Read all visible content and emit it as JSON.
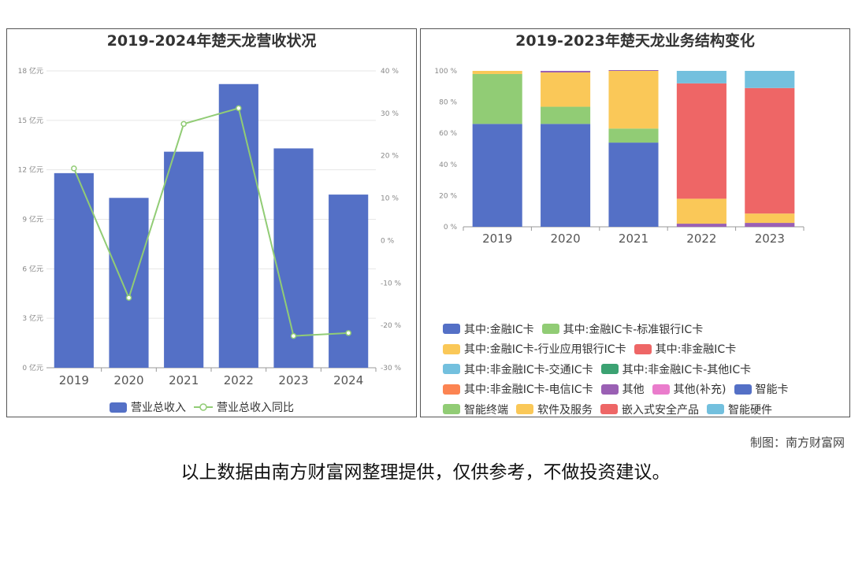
{
  "chart_data": [
    {
      "type": "bar",
      "title": "2019-2024年楚天龙营收状况",
      "categories": [
        "2019",
        "2020",
        "2021",
        "2022",
        "2023",
        "2024"
      ],
      "series": [
        {
          "name": "营业总收入",
          "type": "bar",
          "axis": "left",
          "values": [
            11.8,
            10.3,
            13.1,
            17.2,
            13.3,
            10.5
          ],
          "color": "#5470c6"
        },
        {
          "name": "营业总收入同比",
          "type": "line",
          "axis": "right",
          "values": [
            17,
            -13.5,
            27.5,
            31.2,
            -22.5,
            -21.8
          ],
          "color": "#91cc75"
        }
      ],
      "yaxis_left": {
        "min": 0,
        "max": 18,
        "step": 3,
        "unit": "亿元",
        "tick_labels": [
          "0 亿元",
          "3 亿元",
          "6 亿元",
          "9 亿元",
          "12 亿元",
          "15 亿元",
          "18 亿元"
        ]
      },
      "yaxis_right": {
        "min": -30,
        "max": 40,
        "step": 10,
        "unit": "%",
        "tick_labels": [
          "-30 %",
          "-20 %",
          "-10 %",
          "0 %",
          "10 %",
          "20 %",
          "30 %",
          "40 %"
        ]
      },
      "legend": "bottom-center",
      "grid": true
    },
    {
      "type": "bar",
      "stacked": true,
      "title": "2019-2023年楚天龙业务结构变化",
      "categories": [
        "2019",
        "2020",
        "2021",
        "2022",
        "2023"
      ],
      "series": [
        {
          "name": "其中:金融IC卡",
          "color": "#5470c6",
          "values": [
            66,
            66,
            54,
            0,
            0
          ]
        },
        {
          "name": "其中:金融IC卡-标准银行IC卡",
          "color": "#91cc75",
          "values": [
            32,
            11,
            9,
            0,
            0
          ]
        },
        {
          "name": "其中:金融IC卡-行业应用银行IC卡",
          "color": "#fac858",
          "values": [
            2,
            22,
            37,
            0,
            0
          ]
        },
        {
          "name": "其中:非金融IC卡",
          "color": "#ee6666",
          "values": [
            0,
            0,
            0,
            0,
            0
          ]
        },
        {
          "name": "其中:非金融IC卡-交通IC卡",
          "color": "#73c0de",
          "values": [
            0,
            0,
            0,
            0,
            0
          ]
        },
        {
          "name": "其中:非金融IC卡-其他IC卡",
          "color": "#3ba272",
          "values": [
            0,
            0,
            0,
            0,
            0
          ]
        },
        {
          "name": "其中:非金融IC卡-电信IC卡",
          "color": "#fc8452",
          "values": [
            0,
            0,
            0,
            0,
            0
          ]
        },
        {
          "name": "其他",
          "color": "#9a60b4",
          "values": [
            0,
            1,
            0.5,
            2,
            2.5
          ]
        },
        {
          "name": "其他(补充)",
          "color": "#ea7ccc",
          "values": [
            0,
            0,
            0,
            0,
            0
          ]
        },
        {
          "name": "智能卡",
          "color": "#5470c6",
          "values": [
            0,
            0,
            0,
            0,
            0
          ]
        },
        {
          "name": "智能终端",
          "color": "#91cc75",
          "values": [
            0,
            0,
            0,
            0,
            0
          ]
        },
        {
          "name": "软件及服务",
          "color": "#fac858",
          "values": [
            0,
            0,
            0,
            16,
            6
          ]
        },
        {
          "name": "嵌入式安全产品",
          "color": "#ee6666",
          "values": [
            0,
            0,
            0,
            74,
            80.5
          ]
        },
        {
          "name": "智能硬件",
          "color": "#73c0de",
          "values": [
            0,
            0,
            0,
            8,
            11
          ]
        }
      ],
      "yaxis": {
        "min": 0,
        "max": 100,
        "step": 20,
        "unit": "%",
        "tick_labels": [
          "0 %",
          "20 %",
          "40 %",
          "60 %",
          "80 %",
          "100 %"
        ]
      },
      "legend": "bottom",
      "grid": false
    }
  ],
  "credit": "制图：南方财富网",
  "disclaimer": "以上数据由南方财富网整理提供，仅供参考，不做投资建议。"
}
